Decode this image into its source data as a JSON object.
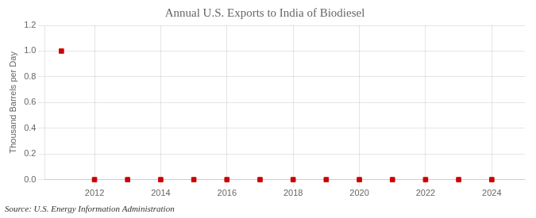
{
  "chart_data": {
    "type": "scatter",
    "title": "Annual U.S. Exports to India of Biodiesel",
    "ylabel": "Thousand Barrels per Day",
    "annotation": "Source: U.S. Energy Information Administration",
    "x": [
      2011,
      2012,
      2013,
      2014,
      2015,
      2016,
      2017,
      2018,
      2019,
      2020,
      2021,
      2022,
      2023,
      2024
    ],
    "values": [
      1.0,
      0.0,
      0.0,
      0.0,
      0.0,
      0.0,
      0.0,
      0.0,
      0.0,
      0.0,
      0.0,
      0.0,
      0.0,
      0.0
    ],
    "color": "#cc0000",
    "marker": "square",
    "xlim": [
      2010.5,
      2025.0
    ],
    "ylim": [
      0.0,
      1.2
    ],
    "xticks": [
      2012,
      2014,
      2016,
      2018,
      2020,
      2022,
      2024
    ],
    "yticks": [
      {
        "value": 0.0,
        "label": "0.0"
      },
      {
        "value": 0.2,
        "label": "0.2"
      },
      {
        "value": 0.4,
        "label": "0.4"
      },
      {
        "value": 0.6,
        "label": "0.6"
      },
      {
        "value": 0.8,
        "label": "0.8"
      },
      {
        "value": 1.0,
        "label": "1.0"
      },
      {
        "value": 1.2,
        "label": "1.2"
      }
    ],
    "grid": true
  }
}
